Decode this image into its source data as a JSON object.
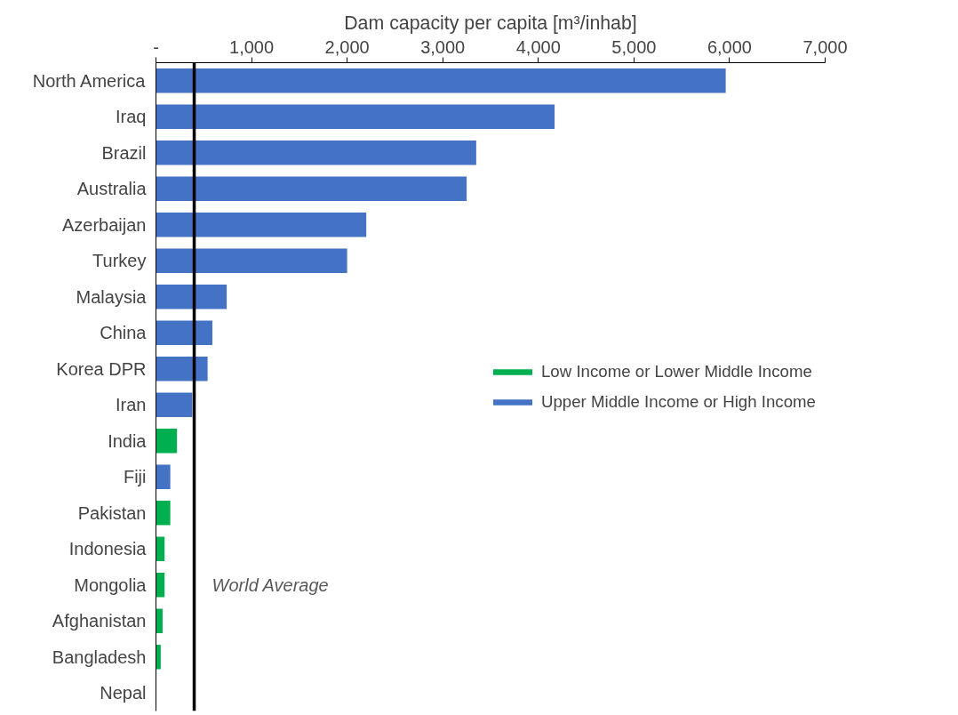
{
  "chart_data": {
    "type": "bar",
    "orientation": "horizontal",
    "xlabel": "Dam capacity per capita [m³/inhab]",
    "categories": [
      "North America",
      "Iraq",
      "Brazil",
      "Australia",
      "Azerbaijan",
      "Turkey",
      "Malaysia",
      "China",
      "Korea DPR",
      "Iran",
      "India",
      "Fiji",
      "Pakistan",
      "Indonesia",
      "Mongolia",
      "Afghanistan",
      "Bangladesh",
      "Nepal"
    ],
    "series": [
      {
        "name": "Low Income or Lower Middle Income",
        "color": "#00b050",
        "values": [
          null,
          null,
          null,
          null,
          null,
          null,
          null,
          null,
          null,
          null,
          220,
          null,
          150,
          90,
          90,
          70,
          50,
          0
        ]
      },
      {
        "name": "Upper Middle Income or High Income",
        "color": "#4472c4",
        "values": [
          5960,
          4170,
          3350,
          3250,
          2200,
          2000,
          740,
          590,
          540,
          380,
          null,
          150,
          null,
          null,
          null,
          null,
          null,
          null
        ]
      }
    ],
    "xlim": [
      0,
      7000
    ],
    "xticks": [
      {
        "value": 0,
        "label": "-"
      },
      {
        "value": 1000,
        "label": "1,000"
      },
      {
        "value": 2000,
        "label": "2,000"
      },
      {
        "value": 3000,
        "label": "3,000"
      },
      {
        "value": 4000,
        "label": "4,000"
      },
      {
        "value": 5000,
        "label": "5,000"
      },
      {
        "value": 6000,
        "label": "6,000"
      },
      {
        "value": 7000,
        "label": "7,000"
      }
    ],
    "ref_lines": [
      {
        "axis": "x",
        "value": 400,
        "label": "World Average",
        "color": "#000000"
      }
    ],
    "legend": "right",
    "grid": false
  }
}
